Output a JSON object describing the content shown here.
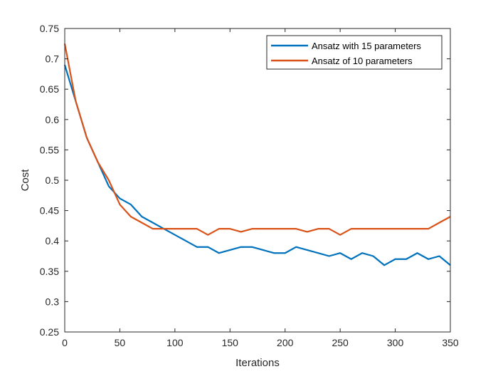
{
  "chart_data": {
    "type": "line",
    "title": "",
    "xlabel": "Iterations",
    "ylabel": "Cost",
    "xlim": [
      0,
      350
    ],
    "ylim": [
      0.25,
      0.75
    ],
    "xticks": [
      0,
      50,
      100,
      150,
      200,
      250,
      300,
      350
    ],
    "yticks": [
      0.25,
      0.3,
      0.35,
      0.4,
      0.45,
      0.5,
      0.55,
      0.6,
      0.65,
      0.7,
      0.75
    ],
    "xtick_labels": [
      "0",
      "50",
      "100",
      "150",
      "200",
      "250",
      "300",
      "350"
    ],
    "ytick_labels": [
      "0.25",
      "0.3",
      "0.35",
      "0.4",
      "0.45",
      "0.5",
      "0.55",
      "0.6",
      "0.65",
      "0.7",
      "0.75"
    ],
    "grid": false,
    "legend_position": "top-right",
    "series": [
      {
        "name": "Ansatz with 15 parameters",
        "color": "#0072BD",
        "x": [
          0,
          10,
          20,
          30,
          40,
          50,
          60,
          70,
          80,
          90,
          100,
          110,
          120,
          130,
          140,
          150,
          160,
          170,
          180,
          190,
          200,
          210,
          220,
          230,
          240,
          250,
          260,
          270,
          280,
          290,
          300,
          310,
          320,
          330,
          340,
          350
        ],
        "values": [
          0.69,
          0.63,
          0.57,
          0.53,
          0.49,
          0.47,
          0.46,
          0.44,
          0.43,
          0.42,
          0.41,
          0.4,
          0.39,
          0.39,
          0.38,
          0.385,
          0.39,
          0.39,
          0.385,
          0.38,
          0.38,
          0.39,
          0.385,
          0.38,
          0.375,
          0.38,
          0.37,
          0.38,
          0.375,
          0.36,
          0.37,
          0.37,
          0.38,
          0.37,
          0.375,
          0.36
        ]
      },
      {
        "name": "Ansatz of 10 parameters",
        "color": "#D95319",
        "x": [
          0,
          10,
          20,
          30,
          40,
          50,
          60,
          70,
          80,
          90,
          100,
          110,
          120,
          130,
          140,
          150,
          160,
          170,
          180,
          190,
          200,
          210,
          220,
          230,
          240,
          250,
          260,
          270,
          280,
          290,
          300,
          310,
          320,
          330,
          340,
          350
        ],
        "values": [
          0.725,
          0.63,
          0.57,
          0.53,
          0.5,
          0.46,
          0.44,
          0.43,
          0.42,
          0.42,
          0.42,
          0.42,
          0.42,
          0.41,
          0.42,
          0.42,
          0.415,
          0.42,
          0.42,
          0.42,
          0.42,
          0.42,
          0.415,
          0.42,
          0.42,
          0.41,
          0.42,
          0.42,
          0.42,
          0.42,
          0.42,
          0.42,
          0.42,
          0.42,
          0.43,
          0.44
        ]
      }
    ]
  }
}
